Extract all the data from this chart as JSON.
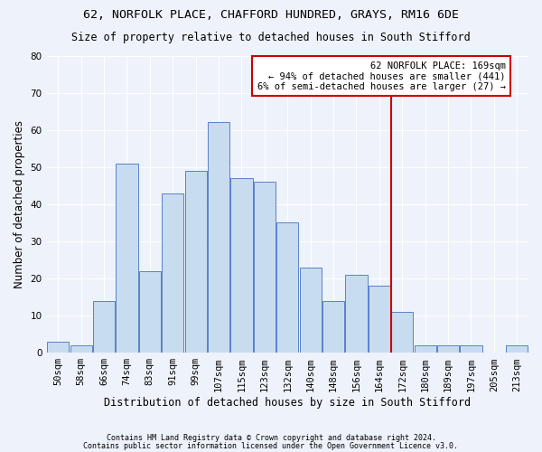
{
  "title1": "62, NORFOLK PLACE, CHAFFORD HUNDRED, GRAYS, RM16 6DE",
  "title2": "Size of property relative to detached houses in South Stifford",
  "xlabel": "Distribution of detached houses by size in South Stifford",
  "ylabel": "Number of detached properties",
  "footnote1": "Contains HM Land Registry data © Crown copyright and database right 2024.",
  "footnote2": "Contains public sector information licensed under the Open Government Licence v3.0.",
  "bar_labels": [
    "50sqm",
    "58sqm",
    "66sqm",
    "74sqm",
    "83sqm",
    "91sqm",
    "99sqm",
    "107sqm",
    "115sqm",
    "123sqm",
    "132sqm",
    "140sqm",
    "148sqm",
    "156sqm",
    "164sqm",
    "172sqm",
    "180sqm",
    "189sqm",
    "197sqm",
    "205sqm",
    "213sqm"
  ],
  "bar_heights": [
    3,
    2,
    14,
    51,
    22,
    43,
    49,
    62,
    47,
    46,
    35,
    23,
    14,
    21,
    18,
    11,
    2,
    2,
    2,
    0,
    2
  ],
  "bar_color": "#c8dcf0",
  "bar_edge_color": "#4472c4",
  "annotation_text_line1": "62 NORFOLK PLACE: 169sqm",
  "annotation_text_line2": "← 94% of detached houses are smaller (441)",
  "annotation_text_line3": "6% of semi-detached houses are larger (27) →",
  "annotation_box_color": "#ffffff",
  "annotation_box_edge": "#cc0000",
  "line_color": "#cc0000",
  "line_x_index": 14.5,
  "ylim": [
    0,
    80
  ],
  "yticks": [
    0,
    10,
    20,
    30,
    40,
    50,
    60,
    70,
    80
  ],
  "background_color": "#eef2fa",
  "grid_color": "#ffffff",
  "title1_fontsize": 9.5,
  "title2_fontsize": 8.5,
  "xlabel_fontsize": 8.5,
  "ylabel_fontsize": 8.5,
  "tick_fontsize": 7.5,
  "annotation_fontsize": 7.5,
  "footnote_fontsize": 6.0
}
